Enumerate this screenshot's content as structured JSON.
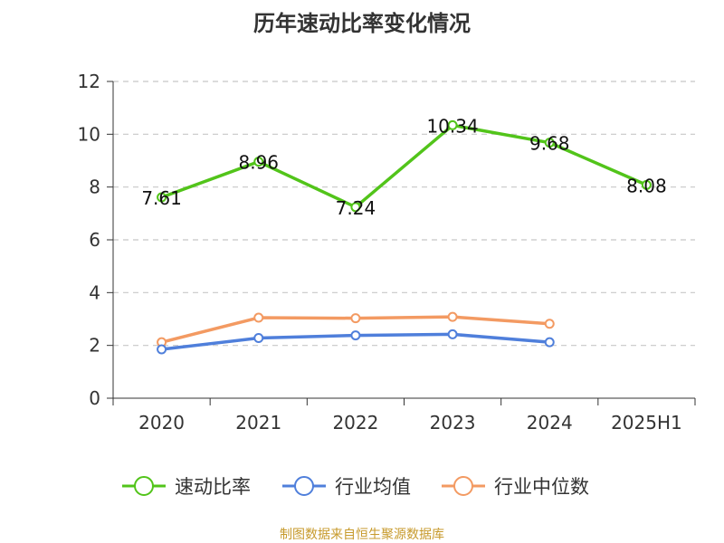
{
  "chart_data": {
    "type": "line",
    "title": "历年速动比率变化情况",
    "categories": [
      "2020",
      "2021",
      "2022",
      "2023",
      "2024",
      "2025H1"
    ],
    "yticks": [
      "0",
      "2",
      "4",
      "6",
      "8",
      "10",
      "12"
    ],
    "ylim": [
      0,
      12
    ],
    "grid": true,
    "legend_position": "bottom",
    "series": [
      {
        "name": "速动比率",
        "color": "#52c41a",
        "values": [
          7.61,
          8.96,
          7.24,
          10.34,
          9.68,
          8.08
        ],
        "labels": [
          "7.61",
          "8.96",
          "7.24",
          "10.34",
          "9.68",
          "8.08"
        ]
      },
      {
        "name": "行业均值",
        "color": "#4f7fdb",
        "values": [
          1.85,
          2.28,
          2.38,
          2.42,
          2.12,
          null
        ]
      },
      {
        "name": "行业中位数",
        "color": "#f39a62",
        "values": [
          2.12,
          3.05,
          3.03,
          3.08,
          2.82,
          null
        ]
      }
    ]
  },
  "footer": {
    "source": "制图数据来自恒生聚源数据库"
  }
}
